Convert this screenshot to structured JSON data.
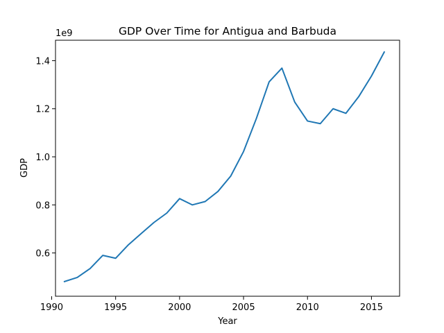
{
  "chart_data": {
    "type": "line",
    "title": "GDP Over Time for Antigua and Barbuda",
    "xlabel": "Year",
    "ylabel": "GDP",
    "y_offset_label": "1e9",
    "xlim": [
      1990.3,
      2017.2
    ],
    "ylim": [
      0.42,
      1.485
    ],
    "x_ticks": [
      1990,
      1995,
      2000,
      2005,
      2010,
      2015
    ],
    "y_ticks": [
      0.6,
      0.8,
      1.0,
      1.2,
      1.4
    ],
    "grid": false,
    "series": [
      {
        "color": "#1f77b4",
        "x": [
          1991,
          1992,
          1993,
          1994,
          1995,
          1996,
          1997,
          1998,
          1999,
          2000,
          2001,
          2002,
          2003,
          2004,
          2005,
          2006,
          2007,
          2008,
          2009,
          2010,
          2011,
          2012,
          2013,
          2014,
          2015,
          2016
        ],
        "y": [
          0.481,
          0.498,
          0.535,
          0.59,
          0.578,
          0.634,
          0.681,
          0.727,
          0.766,
          0.826,
          0.8,
          0.814,
          0.856,
          0.92,
          1.022,
          1.159,
          1.312,
          1.369,
          1.228,
          1.149,
          1.138,
          1.2,
          1.181,
          1.25,
          1.336,
          1.436
        ]
      }
    ]
  }
}
